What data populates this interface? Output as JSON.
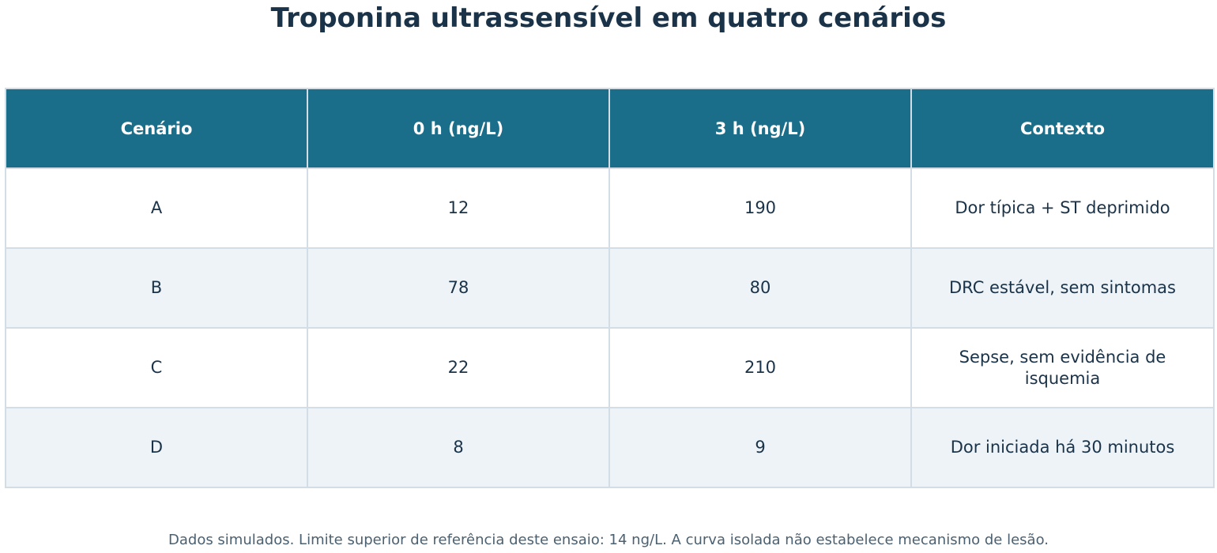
{
  "title": "Troponina ultrassensível em quatro cenários",
  "footnote": "Dados simulados. Limite superior de referência deste ensaio: 14 ng/L. A curva isolada não estabelece mecanismo de lesão.",
  "colors": {
    "header_bg": "#1a6e89",
    "header_text": "#ffffff",
    "row_alt_bg": "#eef3f7",
    "text": "#1a3349",
    "grid": "#d3dde5"
  },
  "chart_data": {
    "type": "table",
    "title": "Troponina ultrassensível em quatro cenários",
    "columns": [
      "Cenário",
      "0 h (ng/L)",
      "3 h (ng/L)",
      "Contexto"
    ],
    "rows": [
      [
        "A",
        "12",
        "190",
        "Dor típica + ST deprimido"
      ],
      [
        "B",
        "78",
        "80",
        "DRC estável, sem sintomas"
      ],
      [
        "C",
        "22",
        "210",
        "Sepse, sem evidência de isquemia"
      ],
      [
        "D",
        "8",
        "9",
        "Dor iniciada há 30 minutos"
      ]
    ]
  }
}
